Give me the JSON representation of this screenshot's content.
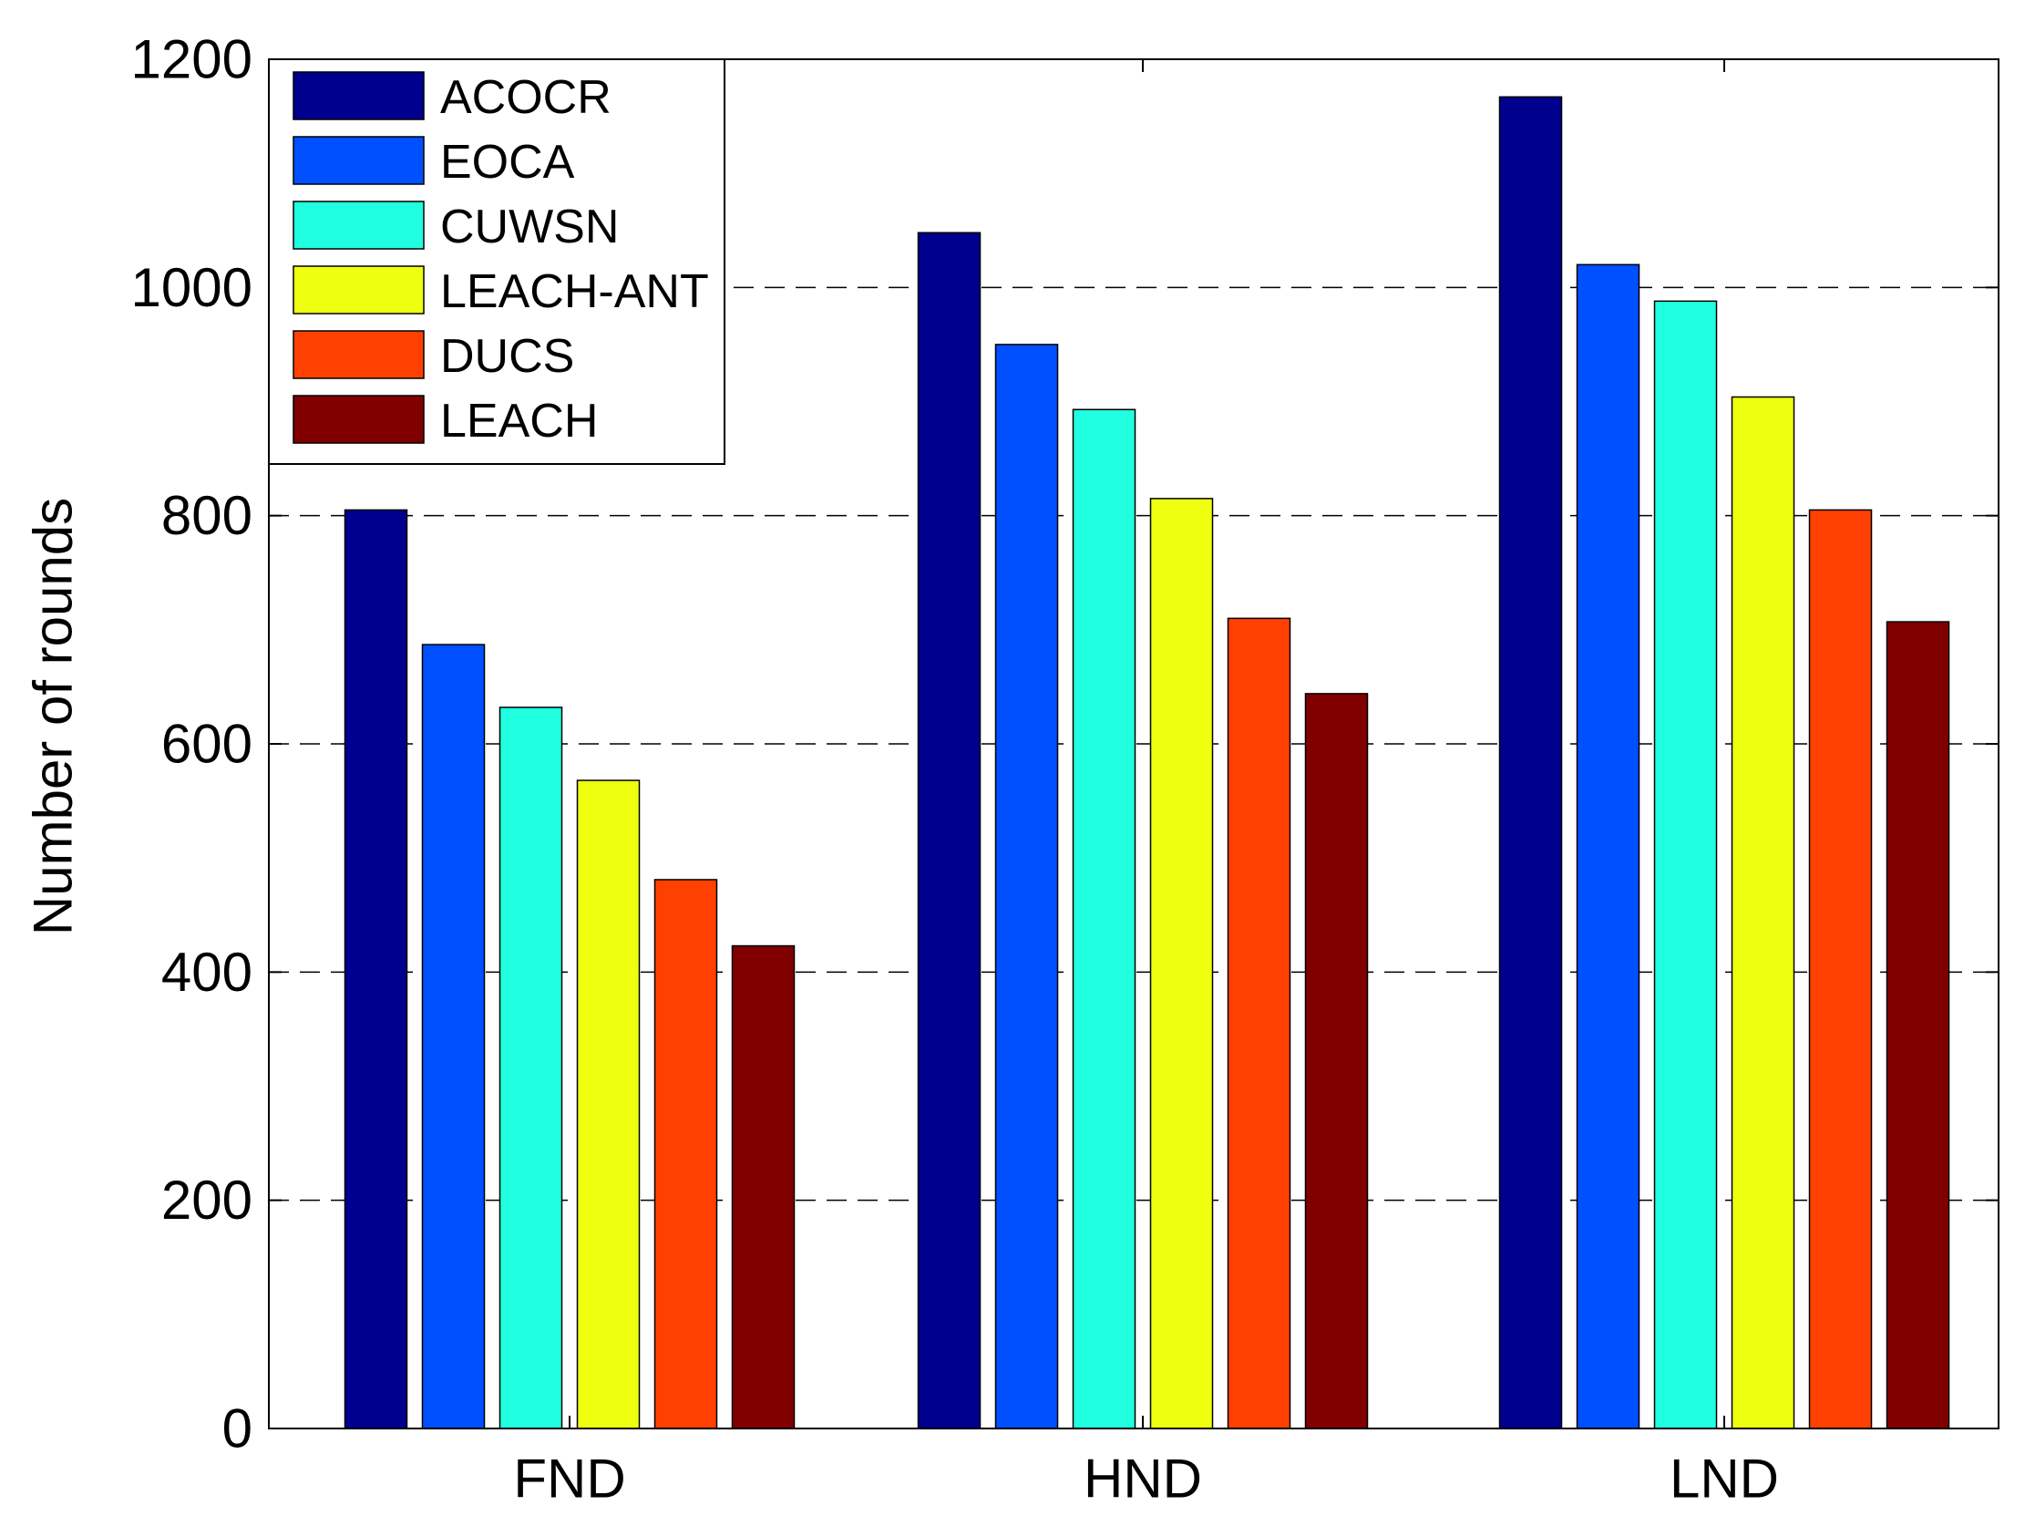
{
  "chart_data": {
    "type": "bar",
    "title": "",
    "xlabel": "",
    "ylabel": "Number of rounds",
    "categories": [
      "FND",
      "HND",
      "LND"
    ],
    "ylim": [
      0,
      1200
    ],
    "yticks": [
      0,
      200,
      400,
      600,
      800,
      1000,
      1200
    ],
    "grid": "horizontal dashed",
    "legend_position": "top-left",
    "series": [
      {
        "name": "ACOCR",
        "color": "#00008F",
        "values": [
          805,
          1048,
          1167
        ]
      },
      {
        "name": "EOCA",
        "color": "#0050FF",
        "values": [
          687,
          950,
          1020
        ]
      },
      {
        "name": "CUWSN",
        "color": "#20FFDF",
        "values": [
          632,
          893,
          988
        ]
      },
      {
        "name": "LEACH-ANT",
        "color": "#EFFF10",
        "values": [
          568,
          815,
          904
        ]
      },
      {
        "name": "DUCS",
        "color": "#FF4000",
        "values": [
          481,
          710,
          805
        ]
      },
      {
        "name": "LEACH",
        "color": "#800000",
        "values": [
          423,
          644,
          707
        ]
      }
    ]
  }
}
